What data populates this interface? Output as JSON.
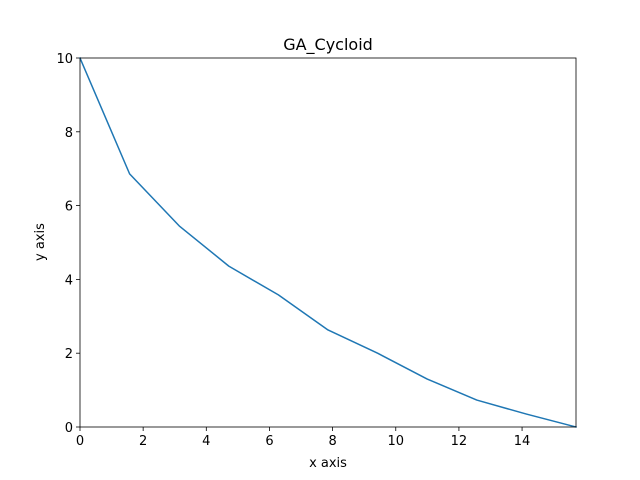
{
  "chart_data": {
    "type": "line",
    "title": "GA_Cycloid",
    "x_label": "x axis",
    "y_label": "y axis",
    "x": [
      0,
      1.571,
      3.142,
      4.712,
      6.283,
      7.854,
      9.425,
      10.996,
      12.566,
      14.137,
      15.708
    ],
    "series": [
      {
        "name": "GA_Cycloid",
        "color": "#1f77b4",
        "values": [
          10,
          6.86,
          5.45,
          4.36,
          3.58,
          2.63,
          2.0,
          1.3,
          0.73,
          0.35,
          0
        ]
      }
    ],
    "xlim": [
      0,
      15.708
    ],
    "ylim": [
      0,
      10
    ],
    "xticks": [
      0,
      2,
      4,
      6,
      8,
      10,
      12,
      14
    ],
    "yticks": [
      0,
      2,
      4,
      6,
      8,
      10
    ],
    "grid": false
  }
}
